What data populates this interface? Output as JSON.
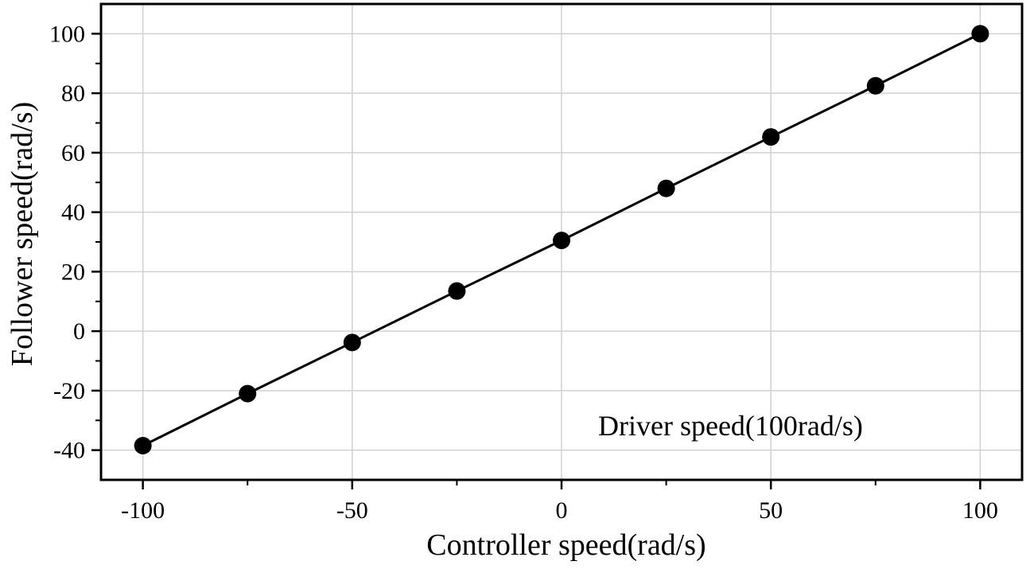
{
  "chart_data": {
    "type": "line",
    "title": "",
    "xlabel": "Controller speed(rad/s)",
    "ylabel": "Follower speed(rad/s)",
    "xlim": [
      -110,
      110
    ],
    "ylim": [
      -50,
      110
    ],
    "xticks": [
      -100,
      -50,
      0,
      50,
      100
    ],
    "yticks": [
      -40,
      -20,
      0,
      20,
      40,
      60,
      80,
      100
    ],
    "x_minor_ticks": [
      -75,
      -25,
      25,
      75
    ],
    "y_minor_ticks": [
      -30,
      -10,
      10,
      30,
      50,
      70,
      90
    ],
    "grid": true,
    "annotation": "Driver speed(100rad/s)",
    "series": [
      {
        "x": [
          -100,
          -75,
          -50,
          -25,
          0,
          25,
          50,
          75,
          100
        ],
        "y": [
          -38.5,
          -21,
          -3.8,
          13.5,
          30.5,
          48,
          65.3,
          82.5,
          100
        ],
        "marker": "circle",
        "color": "#000000"
      }
    ]
  }
}
